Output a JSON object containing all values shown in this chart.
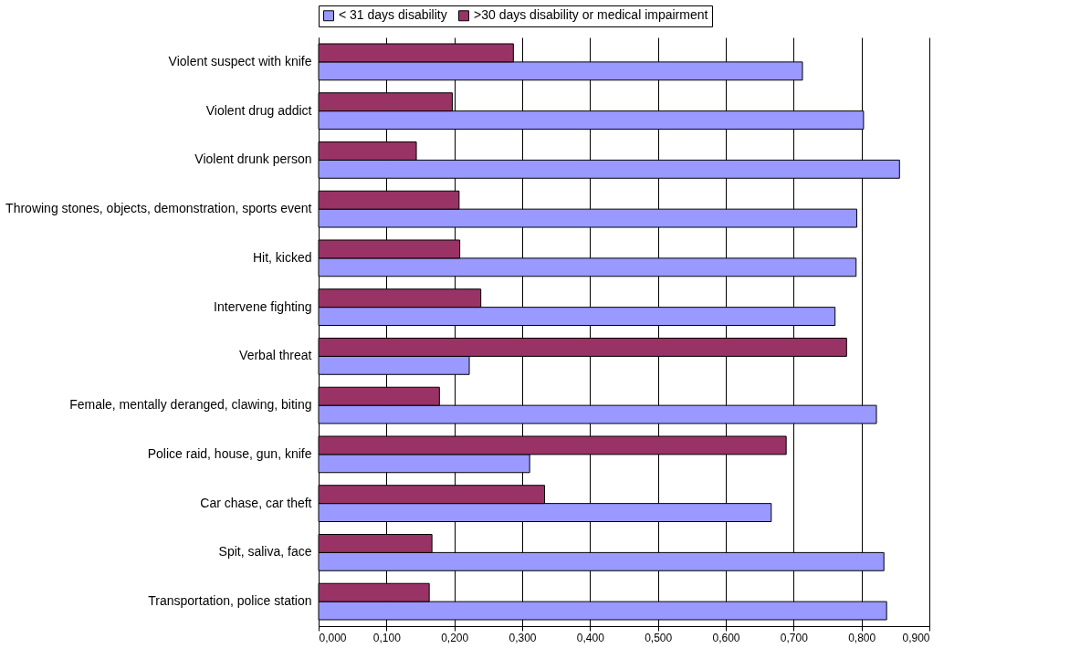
{
  "chart_data": {
    "type": "bar",
    "orientation": "horizontal",
    "categories": [
      "Violent suspect with knife",
      "Violent drug addict",
      "Violent drunk person",
      "Throwing stones, objects, demonstration, sports event",
      "Hit, kicked",
      "Intervene fighting",
      "Verbal threat",
      "Female, mentally deranged, clawing, biting",
      "Police raid, house, gun, knife",
      "Car chase, car theft",
      "Spit, saliva, face",
      "Transportation, police station"
    ],
    "series": [
      {
        "name": "< 31 days disability",
        "color": "#9999ff",
        "values": [
          0.713,
          0.803,
          0.856,
          0.793,
          0.792,
          0.761,
          0.222,
          0.822,
          0.311,
          0.667,
          0.833,
          0.837
        ]
      },
      {
        "name": ">30 days disability or medical impairment",
        "color": "#993366",
        "values": [
          0.287,
          0.197,
          0.144,
          0.207,
          0.208,
          0.239,
          0.778,
          0.178,
          0.689,
          0.333,
          0.167,
          0.163
        ]
      }
    ],
    "xlim": [
      0,
      0.9
    ],
    "xticks": [
      {
        "value": 0,
        "label": "0,000"
      },
      {
        "value": 0.1,
        "label": "0,100"
      },
      {
        "value": 0.2,
        "label": "0,200"
      },
      {
        "value": 0.3,
        "label": "0,300"
      },
      {
        "value": 0.4,
        "label": "0,400"
      },
      {
        "value": 0.5,
        "label": "0,500"
      },
      {
        "value": 0.6,
        "label": "0,600"
      },
      {
        "value": 0.7,
        "label": "0,700"
      },
      {
        "value": 0.8,
        "label": "0,800"
      },
      {
        "value": 0.9,
        "label": "0,900"
      }
    ],
    "grid": "x",
    "legend": "top"
  }
}
